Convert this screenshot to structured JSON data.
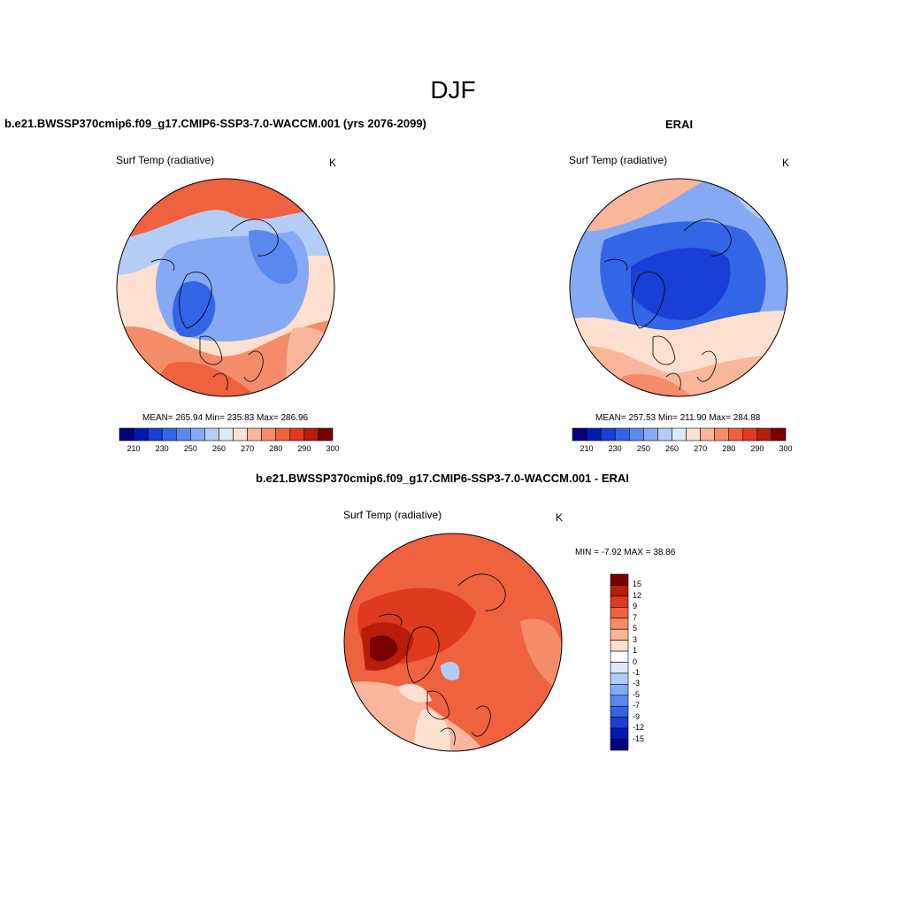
{
  "figure": {
    "season": "DJF",
    "colors": {
      "ice": "#dbe9f8",
      "frame": "#000000"
    }
  },
  "panels": {
    "model": {
      "title": "b.e21.BWSSP370cmip6.f09_g17.CMIP6-SSP3-7.0-WACCM.001 (yrs 2076-2099)",
      "variable": "Surf Temp (radiative)",
      "units": "K",
      "stats": "MEAN= 265.94  Min= 235.83  Max= 286.96"
    },
    "obs": {
      "title": "ERAI",
      "variable": "Surf Temp (radiative)",
      "units": "K",
      "stats": "MEAN= 257.53  Min= 211.90  Max= 284.88"
    },
    "diff": {
      "title": "b.e21.BWSSP370cmip6.f09_g17.CMIP6-SSP3-7.0-WACCM.001 - ERAI",
      "variable": "Surf Temp (radiative)",
      "units": "K",
      "stats": "MIN =  -7.92 MAX =  38.86"
    }
  },
  "colorbars": {
    "abs": {
      "ticks": [
        "210",
        "230",
        "250",
        "260",
        "270",
        "280",
        "290",
        "300"
      ],
      "colors": [
        "#00007f",
        "#0019b3",
        "#1a3fd6",
        "#3366e6",
        "#5a88ef",
        "#86a9f3",
        "#b4cdf7",
        "#dbe9f8",
        "#fde0cf",
        "#f9b69a",
        "#f48c6a",
        "#ee6240",
        "#dd3a1f",
        "#b81d0c",
        "#7a0000"
      ]
    },
    "diff": {
      "ticks": [
        "15",
        "12",
        "9",
        "7",
        "5",
        "3",
        "1",
        "0",
        "-1",
        "-3",
        "-5",
        "-7",
        "-9",
        "-12",
        "-15"
      ],
      "colors": [
        "#7a0000",
        "#b81d0c",
        "#dd3a1f",
        "#ee6240",
        "#f48c6a",
        "#f9b69a",
        "#fde0cf",
        "#ffffff",
        "#dbe9f8",
        "#b4cdf7",
        "#86a9f3",
        "#5a88ef",
        "#3366e6",
        "#1a3fd6",
        "#0019b3",
        "#00007f"
      ]
    }
  }
}
